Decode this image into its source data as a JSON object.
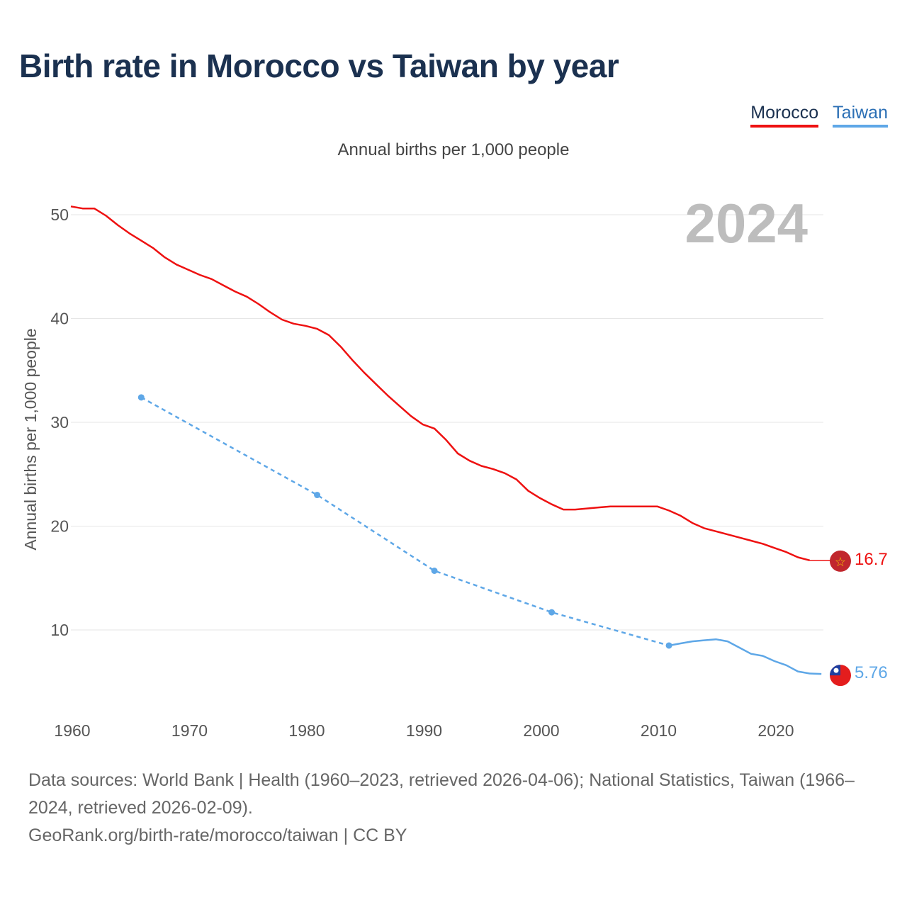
{
  "title": "Birth rate in Morocco vs Taiwan by year",
  "legend": [
    {
      "label": "Morocco",
      "color": "#ee1111"
    },
    {
      "label": "Taiwan",
      "color": "#5ea7e7"
    }
  ],
  "subtitle": "Annual births per 1,000 people",
  "footer": {
    "sources": "Data sources: World Bank | Health (1960–2023, retrieved 2026-04-06); National Statistics, Taiwan (1966–2024, retrieved 2026-02-09).",
    "credit": "GeoRank.org/birth-rate/morocco/taiwan | CC BY"
  },
  "chart_data": {
    "type": "line",
    "title": "Birth rate in Morocco vs Taiwan by year",
    "ylabel": "Annual births per 1,000 people",
    "xlabel": "",
    "year_label": "2024",
    "xlim": [
      1960,
      2024
    ],
    "ylim": [
      0,
      53
    ],
    "x_ticks": [
      1960,
      1970,
      1980,
      1990,
      2000,
      2010,
      2020
    ],
    "y_ticks": [
      10,
      20,
      30,
      40,
      50
    ],
    "grid": true,
    "series": [
      {
        "name": "Morocco",
        "color": "#ee1111",
        "end_label": "16.7",
        "end_year": 2024,
        "end_value": 16.7,
        "flag": "morocco-flag",
        "points": [
          [
            1960,
            50.8
          ],
          [
            1961,
            50.6
          ],
          [
            1962,
            50.6
          ],
          [
            1963,
            49.9
          ],
          [
            1964,
            49.0
          ],
          [
            1965,
            48.2
          ],
          [
            1966,
            47.5
          ],
          [
            1967,
            46.8
          ],
          [
            1968,
            45.9
          ],
          [
            1969,
            45.2
          ],
          [
            1970,
            44.7
          ],
          [
            1971,
            44.2
          ],
          [
            1972,
            43.8
          ],
          [
            1973,
            43.2
          ],
          [
            1974,
            42.6
          ],
          [
            1975,
            42.1
          ],
          [
            1976,
            41.4
          ],
          [
            1977,
            40.6
          ],
          [
            1978,
            39.9
          ],
          [
            1979,
            39.5
          ],
          [
            1980,
            39.3
          ],
          [
            1981,
            39.0
          ],
          [
            1982,
            38.4
          ],
          [
            1983,
            37.3
          ],
          [
            1984,
            36.0
          ],
          [
            1985,
            34.8
          ],
          [
            1986,
            33.7
          ],
          [
            1987,
            32.6
          ],
          [
            1988,
            31.6
          ],
          [
            1989,
            30.6
          ],
          [
            1990,
            29.8
          ],
          [
            1991,
            29.4
          ],
          [
            1992,
            28.3
          ],
          [
            1993,
            27.0
          ],
          [
            1994,
            26.3
          ],
          [
            1995,
            25.8
          ],
          [
            1996,
            25.5
          ],
          [
            1997,
            25.1
          ],
          [
            1998,
            24.5
          ],
          [
            1999,
            23.4
          ],
          [
            2000,
            22.7
          ],
          [
            2001,
            22.1
          ],
          [
            2002,
            21.6
          ],
          [
            2003,
            21.6
          ],
          [
            2004,
            21.7
          ],
          [
            2005,
            21.8
          ],
          [
            2006,
            21.9
          ],
          [
            2007,
            21.9
          ],
          [
            2008,
            21.9
          ],
          [
            2009,
            21.9
          ],
          [
            2010,
            21.9
          ],
          [
            2011,
            21.5
          ],
          [
            2012,
            21.0
          ],
          [
            2013,
            20.3
          ],
          [
            2014,
            19.8
          ],
          [
            2015,
            19.5
          ],
          [
            2016,
            19.2
          ],
          [
            2017,
            18.9
          ],
          [
            2018,
            18.6
          ],
          [
            2019,
            18.3
          ],
          [
            2020,
            17.9
          ],
          [
            2021,
            17.5
          ],
          [
            2022,
            17.0
          ],
          [
            2023,
            16.7
          ]
        ]
      },
      {
        "name": "Taiwan",
        "color": "#5ea7e7",
        "end_label": "5.76",
        "end_year": 2024,
        "end_value": 5.76,
        "flag": "taiwan-flag",
        "sparse_points": [
          [
            1966,
            32.4
          ],
          [
            1981,
            23.0
          ],
          [
            1991,
            15.7
          ],
          [
            2001,
            11.7
          ],
          [
            2011,
            8.5
          ]
        ],
        "points": [
          [
            2011,
            8.5
          ],
          [
            2012,
            8.7
          ],
          [
            2013,
            8.9
          ],
          [
            2014,
            9.0
          ],
          [
            2015,
            9.1
          ],
          [
            2016,
            8.9
          ],
          [
            2017,
            8.3
          ],
          [
            2018,
            7.7
          ],
          [
            2019,
            7.5
          ],
          [
            2020,
            7.0
          ],
          [
            2021,
            6.6
          ],
          [
            2022,
            6.0
          ],
          [
            2023,
            5.8
          ],
          [
            2024,
            5.76
          ]
        ]
      }
    ]
  }
}
